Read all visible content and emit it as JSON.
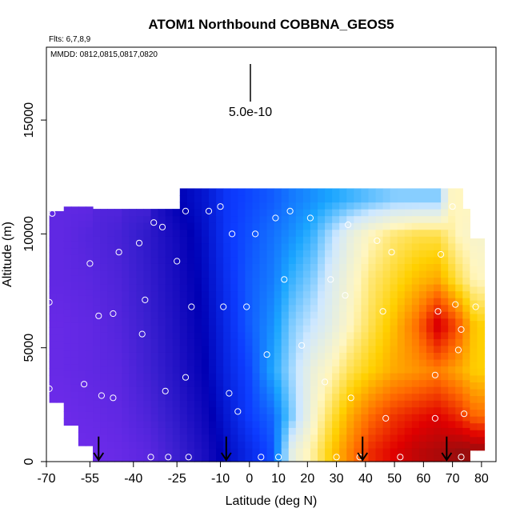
{
  "chart_data": {
    "type": "heatmap",
    "title": "ATOM1 Northbound COBBNA_GEOS5",
    "flights_note": "Flts: 6,7,8,9",
    "dates_note": "MMDD: 0812,0815,0817,0820",
    "xlabel": "Latitude (deg N)",
    "ylabel": "Altitude (m)",
    "xlim": [
      -70,
      85
    ],
    "ylim": [
      0,
      18200
    ],
    "x_ticks": [
      -70,
      -55,
      -40,
      -25,
      -10,
      0,
      10,
      20,
      30,
      40,
      50,
      60,
      70,
      80
    ],
    "y_ticks": [
      0,
      5000,
      10000,
      15000
    ],
    "scale_bar_label": "5.0e-10",
    "colormap": [
      "#7a2ef0",
      "#3a1fd0",
      "#0000b4",
      "#0d3cff",
      "#1aa6ff",
      "#cfe8ff",
      "#fff6c0",
      "#ffd000",
      "#ff6a00",
      "#e00000",
      "#8a1010"
    ],
    "field_description_levels": {
      "latitudes": [
        -65,
        -55,
        -45,
        -35,
        -25,
        -15,
        -8,
        0,
        8,
        15,
        22,
        28,
        35,
        42,
        50,
        58,
        65,
        72,
        78
      ],
      "altitudes": [
        500,
        2000,
        4000,
        6000,
        8000,
        10000,
        11500
      ],
      "values": [
        [
          0.02,
          0.02,
          0.03,
          0.05,
          0.1,
          0.16,
          0.22,
          0.27,
          0.32,
          0.55,
          0.62,
          0.7,
          0.78,
          0.86,
          0.9,
          0.94,
          0.96,
          0.98,
          0.98
        ],
        [
          0.02,
          0.03,
          0.04,
          0.07,
          0.12,
          0.18,
          0.24,
          0.3,
          0.34,
          0.46,
          0.58,
          0.66,
          0.74,
          0.8,
          0.85,
          0.88,
          0.9,
          0.86,
          0.8
        ],
        [
          0.03,
          0.04,
          0.05,
          0.09,
          0.14,
          0.2,
          0.26,
          0.31,
          0.4,
          0.48,
          0.56,
          0.6,
          0.66,
          0.7,
          0.74,
          0.76,
          0.78,
          0.74,
          0.7
        ],
        [
          0.03,
          0.04,
          0.06,
          0.1,
          0.15,
          0.21,
          0.27,
          0.33,
          0.38,
          0.46,
          0.5,
          0.54,
          0.6,
          0.66,
          0.72,
          0.8,
          0.92,
          0.82,
          0.7
        ],
        [
          0.04,
          0.05,
          0.07,
          0.11,
          0.16,
          0.22,
          0.28,
          0.33,
          0.36,
          0.42,
          0.46,
          0.52,
          0.58,
          0.64,
          0.68,
          0.72,
          0.74,
          0.66,
          0.6
        ],
        [
          0.04,
          0.06,
          0.08,
          0.12,
          0.17,
          0.23,
          0.29,
          0.32,
          0.35,
          0.38,
          0.42,
          0.48,
          0.55,
          0.6,
          0.64,
          0.66,
          0.66,
          0.6,
          0.58
        ],
        [
          null,
          null,
          null,
          null,
          0.2,
          0.24,
          0.29,
          0.31,
          0.33,
          0.36,
          0.38,
          0.4,
          0.42,
          0.44,
          0.46,
          0.46,
          0.46,
          null,
          null
        ]
      ]
    },
    "sample_points": [
      [
        -68,
        10900
      ],
      [
        -69,
        7000
      ],
      [
        -69,
        3200
      ],
      [
        -57,
        3400
      ],
      [
        -57,
        200
      ],
      [
        -55,
        8700
      ],
      [
        -52,
        6400
      ],
      [
        -51,
        2900
      ],
      [
        -47,
        6500
      ],
      [
        -47,
        2800
      ],
      [
        -45,
        9200
      ],
      [
        -38,
        9600
      ],
      [
        -37,
        5600
      ],
      [
        -36,
        7100
      ],
      [
        -34,
        200
      ],
      [
        -33,
        10500
      ],
      [
        -30,
        10300
      ],
      [
        -29,
        3100
      ],
      [
        -28,
        200
      ],
      [
        -25,
        8800
      ],
      [
        -22,
        11000
      ],
      [
        -22,
        3700
      ],
      [
        -21,
        200
      ],
      [
        -20,
        6800
      ],
      [
        -14,
        11000
      ],
      [
        -10,
        11200
      ],
      [
        -9,
        6800
      ],
      [
        -7,
        3000
      ],
      [
        -6,
        10000
      ],
      [
        -4,
        2200
      ],
      [
        -1,
        6800
      ],
      [
        2,
        10000
      ],
      [
        4,
        200
      ],
      [
        6,
        4700
      ],
      [
        9,
        10700
      ],
      [
        10,
        200
      ],
      [
        12,
        8000
      ],
      [
        14,
        11000
      ],
      [
        18,
        5100
      ],
      [
        21,
        10700
      ],
      [
        26,
        3500
      ],
      [
        28,
        8000
      ],
      [
        30,
        200
      ],
      [
        33,
        7300
      ],
      [
        34,
        10400
      ],
      [
        35,
        2800
      ],
      [
        38,
        200
      ],
      [
        44,
        9700
      ],
      [
        46,
        6600
      ],
      [
        47,
        1900
      ],
      [
        49,
        9200
      ],
      [
        52,
        200
      ],
      [
        64,
        1900
      ],
      [
        64,
        3800
      ],
      [
        65,
        6600
      ],
      [
        66,
        9100
      ],
      [
        70,
        11200
      ],
      [
        71,
        6900
      ],
      [
        72,
        4900
      ],
      [
        73,
        5800
      ],
      [
        74,
        2100
      ],
      [
        73,
        200
      ],
      [
        78,
        6800
      ]
    ],
    "flight_markers_lat": [
      -52,
      -8,
      39,
      68
    ]
  }
}
